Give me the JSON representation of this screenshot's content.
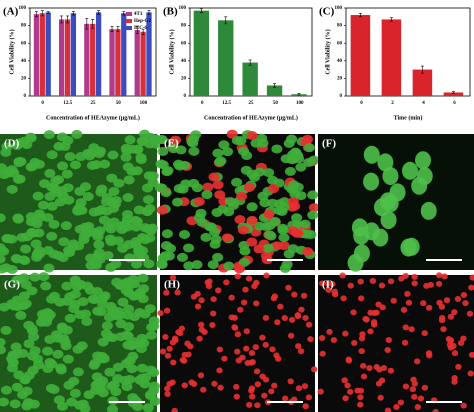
{
  "chart_data": [
    {
      "type": "bar",
      "panel_label": "(A)",
      "ylabel": "Cell Viability (%)",
      "xlabel": "Concentration of HEAzyme (μg/mL)",
      "categories": [
        "0",
        "12.5",
        "25",
        "50",
        "100"
      ],
      "ylim": [
        0,
        100
      ],
      "yticks": [
        0,
        20,
        40,
        60,
        80,
        100
      ],
      "legend": "upper right",
      "series": [
        {
          "name": "4T1",
          "color": "#b03a8c",
          "values": [
            93,
            87,
            82,
            76,
            75
          ],
          "errors": [
            3,
            4,
            6,
            3,
            4
          ]
        },
        {
          "name": "Hep-G2",
          "color": "#d8303a",
          "values": [
            94,
            87,
            82,
            76,
            73
          ],
          "errors": [
            3,
            4,
            5,
            3,
            3
          ]
        },
        {
          "name": "IEC-6",
          "color": "#3a4cc0",
          "values": [
            95,
            94,
            95,
            94,
            95
          ],
          "errors": [
            1,
            2,
            2,
            2,
            2
          ]
        }
      ]
    },
    {
      "type": "bar",
      "panel_label": "(B)",
      "ylabel": "Cell Viability (%)",
      "xlabel": "Concentration of HEAzyme (μg/mL)",
      "categories": [
        "0",
        "12.5",
        "25",
        "50",
        "100"
      ],
      "ylim": [
        0,
        100
      ],
      "yticks": [
        0,
        20,
        40,
        60,
        80,
        100
      ],
      "series": [
        {
          "color": "#2e8a3a",
          "values": [
            97,
            86,
            38,
            12,
            2
          ],
          "errors": [
            2,
            4,
            3,
            2,
            1
          ]
        }
      ]
    },
    {
      "type": "bar",
      "panel_label": "(C)",
      "ylabel": "Cell Viability (%)",
      "xlabel": "Time (min)",
      "categories": [
        "0",
        "2",
        "4",
        "6"
      ],
      "ylim": [
        0,
        100
      ],
      "yticks": [
        0,
        20,
        40,
        60,
        80,
        100
      ],
      "series": [
        {
          "color": "#d8242a",
          "values": [
            92,
            87,
            30,
            4
          ],
          "errors": [
            2,
            2,
            4,
            1
          ]
        }
      ]
    }
  ],
  "images": [
    {
      "label": "(D)"
    },
    {
      "label": "(E)"
    },
    {
      "label": "(F)"
    },
    {
      "label": "(G)"
    },
    {
      "label": "(H)"
    },
    {
      "label": "(I)"
    }
  ]
}
